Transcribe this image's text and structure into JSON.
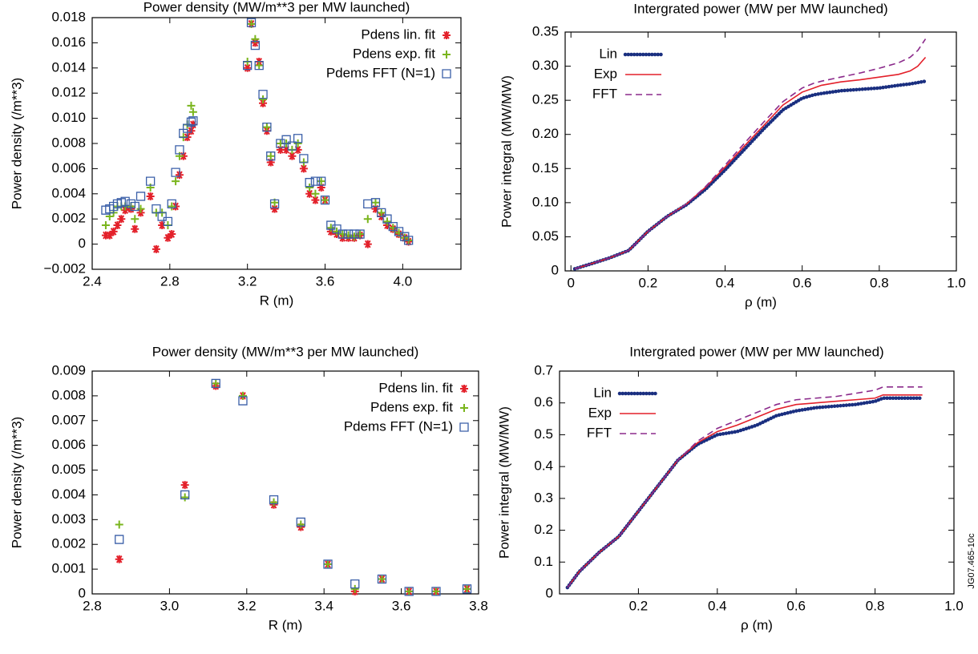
{
  "chart_data": [
    {
      "type": "scatter",
      "title": "Power density (MW/m**3 per MW launched)",
      "x_label": "R (m)",
      "y_label": "Power density (/m**3)",
      "xlim": [
        2.4,
        4.3
      ],
      "ylim": [
        -0.002,
        0.018
      ],
      "xticks": [
        2.4,
        2.8,
        3.2,
        3.6,
        {
          "value": 4.0,
          "label": "4.0"
        }
      ],
      "yticks": [
        {
          "value": -0.002,
          "label": "−0.002"
        },
        0,
        0.002,
        0.004,
        0.006,
        0.008,
        {
          "value": 0.01,
          "label": "0.010"
        },
        0.012,
        0.014,
        0.016,
        0.018
      ],
      "legend": "upper right",
      "x": [
        2.47,
        2.49,
        2.51,
        2.53,
        2.55,
        2.57,
        2.6,
        2.62,
        2.65,
        2.7,
        2.73,
        2.76,
        2.79,
        2.81,
        2.83,
        2.85,
        2.87,
        2.89,
        2.91,
        2.92,
        3.2,
        3.22,
        3.24,
        3.26,
        3.28,
        3.3,
        3.32,
        3.34,
        3.37,
        3.4,
        3.43,
        3.46,
        3.49,
        3.52,
        3.55,
        3.58,
        3.6,
        3.63,
        3.66,
        3.69,
        3.72,
        3.75,
        3.78,
        3.82,
        3.86,
        3.89,
        3.92,
        3.95,
        3.98,
        4.01,
        4.03
      ],
      "series": [
        {
          "name": "Pdens lin. fit",
          "color": "#e3202a",
          "marker": "asterisk",
          "values": [
            0.0007,
            0.0007,
            0.001,
            0.0015,
            0.002,
            0.0027,
            0.0028,
            0.0012,
            0.0025,
            0.0038,
            -0.0004,
            0.0015,
            0.0005,
            0.0008,
            0.003,
            0.0055,
            0.007,
            0.0085,
            0.009,
            0.0095,
            0.014,
            0.0175,
            0.016,
            0.0145,
            0.0112,
            0.009,
            0.0065,
            0.0028,
            0.0075,
            0.0075,
            0.007,
            0.0075,
            0.006,
            0.004,
            0.0035,
            0.0045,
            0.0035,
            0.001,
            0.0008,
            0.0005,
            0.0005,
            0.0005,
            0.0007,
            0.0,
            0.0028,
            0.0022,
            0.0015,
            0.0012,
            0.0008,
            0.0005,
            0.0002
          ]
        },
        {
          "name": "Pdens exp. fit",
          "color": "#7ab51d",
          "marker": "plus",
          "values": [
            0.0015,
            0.0022,
            0.0025,
            0.003,
            0.003,
            0.003,
            0.003,
            0.002,
            0.0028,
            0.0045,
            0.0025,
            0.0025,
            0.0015,
            0.003,
            0.005,
            0.007,
            0.0085,
            0.0095,
            0.011,
            0.0105,
            0.0145,
            0.0175,
            0.0163,
            0.0142,
            0.0115,
            0.0093,
            0.007,
            0.0033,
            0.008,
            0.008,
            0.0075,
            0.008,
            0.0065,
            0.0045,
            0.004,
            0.005,
            0.0035,
            0.0013,
            0.001,
            0.0008,
            0.0007,
            0.0006,
            0.0008,
            0.002,
            0.0033,
            0.0025,
            0.0018,
            0.0013,
            0.0009,
            0.0005,
            0.0003
          ]
        },
        {
          "name": "Pdems FFT (N=1)",
          "color": "#3a5fa8",
          "marker": "square",
          "values": [
            0.0027,
            0.0028,
            0.003,
            0.0032,
            0.0033,
            0.0034,
            0.0032,
            0.003,
            0.0038,
            0.005,
            0.0028,
            0.0022,
            0.0018,
            0.0032,
            0.0057,
            0.0075,
            0.0088,
            0.0092,
            0.0097,
            0.0098,
            0.0142,
            0.0176,
            0.0158,
            0.0142,
            0.0119,
            0.0093,
            0.007,
            0.0032,
            0.008,
            0.0083,
            0.0078,
            0.0084,
            0.0068,
            0.0049,
            0.005,
            0.005,
            0.0035,
            0.0015,
            0.0012,
            0.0008,
            0.0008,
            0.0008,
            0.0008,
            0.0032,
            0.0033,
            0.0025,
            0.002,
            0.0014,
            0.001,
            0.0006,
            0.0003
          ]
        }
      ]
    },
    {
      "type": "line",
      "title": "Intergrated power (MW per MW launched)",
      "x_label": "ρ (m)",
      "y_label": "Power integral (MW/MW)",
      "xlim": [
        -0.015,
        1.0
      ],
      "ylim": [
        0,
        0.35
      ],
      "xticks": [
        0,
        0.2,
        0.4,
        0.6,
        0.8,
        {
          "value": 1.0,
          "label": "1.0"
        }
      ],
      "yticks": [
        0,
        0.05,
        {
          "value": 0.1,
          "label": "0.10"
        },
        0.15,
        {
          "value": 0.2,
          "label": "0.20"
        },
        0.25,
        {
          "value": 0.3,
          "label": "0.30"
        },
        0.35
      ],
      "legend": "upper left",
      "x": [
        0.01,
        0.05,
        0.1,
        0.15,
        0.2,
        0.25,
        0.3,
        0.35,
        0.4,
        0.45,
        0.5,
        0.55,
        0.6,
        0.63,
        0.65,
        0.7,
        0.75,
        0.8,
        0.85,
        0.88,
        0.9,
        0.92
      ],
      "series": [
        {
          "name": "Lin",
          "color": "#1a2f80",
          "style": "dots",
          "values": [
            0.003,
            0.01,
            0.019,
            0.03,
            0.058,
            0.08,
            0.097,
            0.12,
            0.148,
            0.178,
            0.208,
            0.236,
            0.253,
            0.258,
            0.26,
            0.264,
            0.266,
            0.268,
            0.272,
            0.274,
            0.276,
            0.278
          ]
        },
        {
          "name": "Exp",
          "color": "#e3202a",
          "style": "solid",
          "values": [
            0.003,
            0.01,
            0.019,
            0.03,
            0.058,
            0.08,
            0.098,
            0.123,
            0.152,
            0.183,
            0.213,
            0.243,
            0.262,
            0.268,
            0.272,
            0.277,
            0.28,
            0.284,
            0.288,
            0.293,
            0.3,
            0.313
          ]
        },
        {
          "name": "FFT",
          "color": "#8b2a8b",
          "style": "dashed",
          "values": [
            0.003,
            0.01,
            0.019,
            0.03,
            0.058,
            0.08,
            0.098,
            0.124,
            0.155,
            0.187,
            0.218,
            0.248,
            0.268,
            0.275,
            0.278,
            0.284,
            0.29,
            0.297,
            0.305,
            0.313,
            0.323,
            0.34
          ]
        }
      ]
    },
    {
      "type": "scatter",
      "title": "Power density (MW/m**3 per MW launched)",
      "x_label": "R (m)",
      "y_label": "Power density (/m**3)",
      "xlim": [
        2.8,
        3.8
      ],
      "ylim": [
        0,
        0.009
      ],
      "xticks": [
        2.8,
        {
          "value": 3.0,
          "label": "3.0"
        },
        3.2,
        3.4,
        3.6,
        3.8
      ],
      "yticks": [
        0,
        0.001,
        0.002,
        0.003,
        0.004,
        0.005,
        0.006,
        0.007,
        0.008,
        0.009
      ],
      "legend": "upper right",
      "x": [
        2.87,
        3.04,
        3.12,
        3.19,
        3.27,
        3.34,
        3.41,
        3.48,
        3.55,
        3.62,
        3.69,
        3.77
      ],
      "series": [
        {
          "name": "Pdens lin. fit",
          "color": "#e3202a",
          "marker": "asterisk",
          "values": [
            0.0014,
            0.0044,
            0.0084,
            0.008,
            0.0036,
            0.0027,
            0.0012,
            0.0001,
            0.0006,
            0.0001,
            0.0001,
            0.0002
          ]
        },
        {
          "name": "Pdens exp. fit",
          "color": "#7ab51d",
          "marker": "plus",
          "values": [
            0.0028,
            0.0039,
            0.0085,
            0.008,
            0.0037,
            0.0028,
            0.0012,
            0.0002,
            0.0006,
            0.0001,
            0.0001,
            0.0002
          ]
        },
        {
          "name": "Pdems FFT (N=1)",
          "color": "#3a5fa8",
          "marker": "square",
          "values": [
            0.0022,
            0.004,
            0.0085,
            0.0078,
            0.0038,
            0.0029,
            0.0012,
            0.0004,
            0.0006,
            0.0001,
            0.0001,
            0.0002
          ]
        }
      ]
    },
    {
      "type": "line",
      "title": "Intergrated power (MW per MW launched)",
      "x_label": "ρ (m)",
      "y_label": "Power integral (MW/MW)",
      "xlim": [
        0,
        1.0
      ],
      "ylim": [
        0,
        0.7
      ],
      "xticks": [
        0.2,
        0.4,
        0.6,
        0.8,
        {
          "value": 1.0,
          "label": "1.0"
        }
      ],
      "yticks": [
        0,
        0.1,
        0.2,
        0.3,
        0.4,
        0.5,
        0.6,
        0.7
      ],
      "legend": "upper left",
      "x": [
        0.02,
        0.05,
        0.1,
        0.15,
        0.2,
        0.25,
        0.3,
        0.35,
        0.4,
        0.45,
        0.5,
        0.55,
        0.6,
        0.65,
        0.7,
        0.75,
        0.8,
        0.82,
        0.85,
        0.9,
        0.92
      ],
      "series": [
        {
          "name": "Lin",
          "color": "#1a2f80",
          "style": "dots",
          "values": [
            0.02,
            0.07,
            0.13,
            0.18,
            0.26,
            0.34,
            0.42,
            0.47,
            0.5,
            0.51,
            0.53,
            0.56,
            0.575,
            0.585,
            0.59,
            0.595,
            0.605,
            0.615,
            0.615,
            0.615,
            0.615
          ]
        },
        {
          "name": "Exp",
          "color": "#e3202a",
          "style": "solid",
          "values": [
            0.02,
            0.07,
            0.13,
            0.18,
            0.26,
            0.34,
            0.42,
            0.475,
            0.51,
            0.53,
            0.555,
            0.58,
            0.595,
            0.6,
            0.605,
            0.61,
            0.615,
            0.625,
            0.625,
            0.625,
            0.625
          ]
        },
        {
          "name": "FFT",
          "color": "#8b2a8b",
          "style": "dashed",
          "values": [
            0.02,
            0.07,
            0.13,
            0.18,
            0.26,
            0.34,
            0.42,
            0.48,
            0.52,
            0.545,
            0.57,
            0.595,
            0.61,
            0.615,
            0.62,
            0.63,
            0.64,
            0.65,
            0.65,
            0.65,
            0.65
          ]
        }
      ]
    }
  ],
  "figure_id": "JG07.465-10c"
}
